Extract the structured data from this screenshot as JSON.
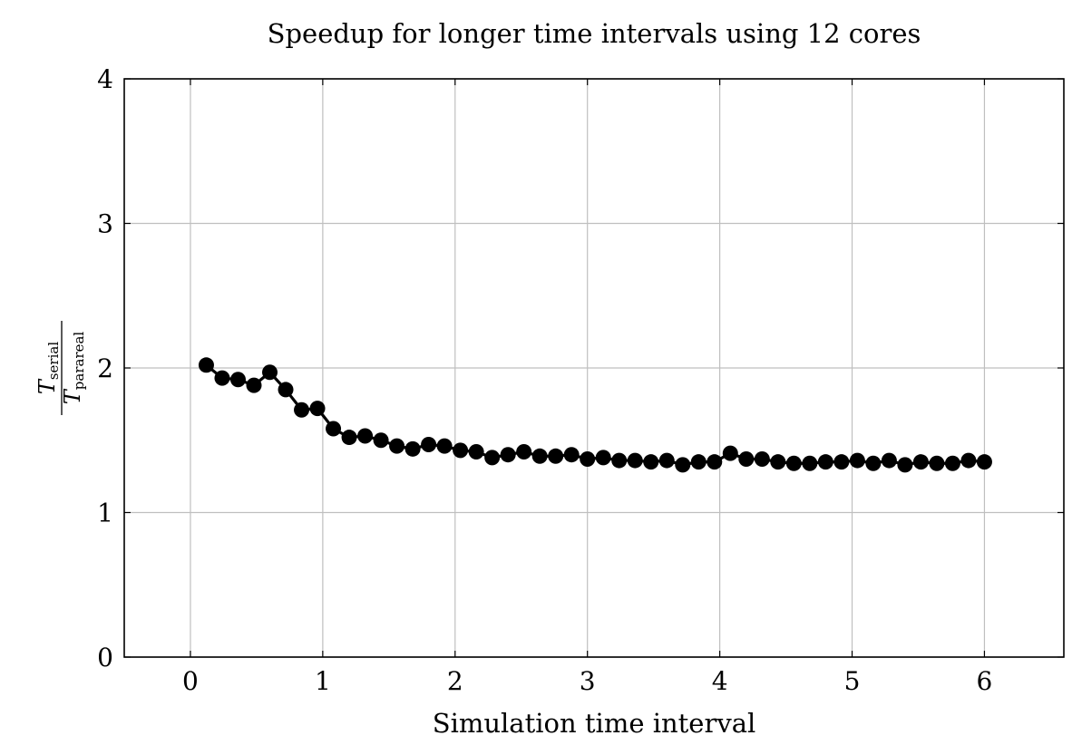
{
  "chart_data": {
    "type": "line",
    "title": "Speedup for longer time intervals using 12 cores",
    "xlabel": "Simulation time interval",
    "ylabel": {
      "numerator": "T",
      "numerator_sub": "serial",
      "denominator": "T",
      "denominator_sub": "parareal"
    },
    "xlim": [
      -0.5,
      6.6
    ],
    "ylim": [
      0,
      4
    ],
    "xticks": [
      0,
      1,
      2,
      3,
      4,
      5,
      6
    ],
    "yticks": [
      0,
      1,
      2,
      3,
      4
    ],
    "grid": true,
    "legend": false,
    "line_color": "#000000",
    "grid_color": "#bfbfbf",
    "series": [
      {
        "x": [
          0.12,
          0.24,
          0.36,
          0.48,
          0.6,
          0.72,
          0.84,
          0.96,
          1.08,
          1.2,
          1.32,
          1.44,
          1.56,
          1.68,
          1.8,
          1.92,
          2.04,
          2.16,
          2.28,
          2.4,
          2.52,
          2.64,
          2.76,
          2.88,
          3.0,
          3.12,
          3.24,
          3.36,
          3.48,
          3.6,
          3.72,
          3.84,
          3.96,
          4.08,
          4.2,
          4.32,
          4.44,
          4.56,
          4.68,
          4.8,
          4.92,
          5.04,
          5.16,
          5.28,
          5.4,
          5.52,
          5.64,
          5.76,
          5.88,
          6.0
        ],
        "y": [
          2.02,
          1.93,
          1.92,
          1.88,
          1.97,
          1.85,
          1.71,
          1.72,
          1.58,
          1.52,
          1.53,
          1.5,
          1.46,
          1.44,
          1.47,
          1.46,
          1.43,
          1.42,
          1.38,
          1.4,
          1.42,
          1.39,
          1.39,
          1.4,
          1.37,
          1.38,
          1.36,
          1.36,
          1.35,
          1.36,
          1.33,
          1.35,
          1.35,
          1.41,
          1.37,
          1.37,
          1.35,
          1.34,
          1.34,
          1.35,
          1.35,
          1.36,
          1.34,
          1.36,
          1.33,
          1.35,
          1.34,
          1.34,
          1.36,
          1.35
        ]
      }
    ]
  }
}
